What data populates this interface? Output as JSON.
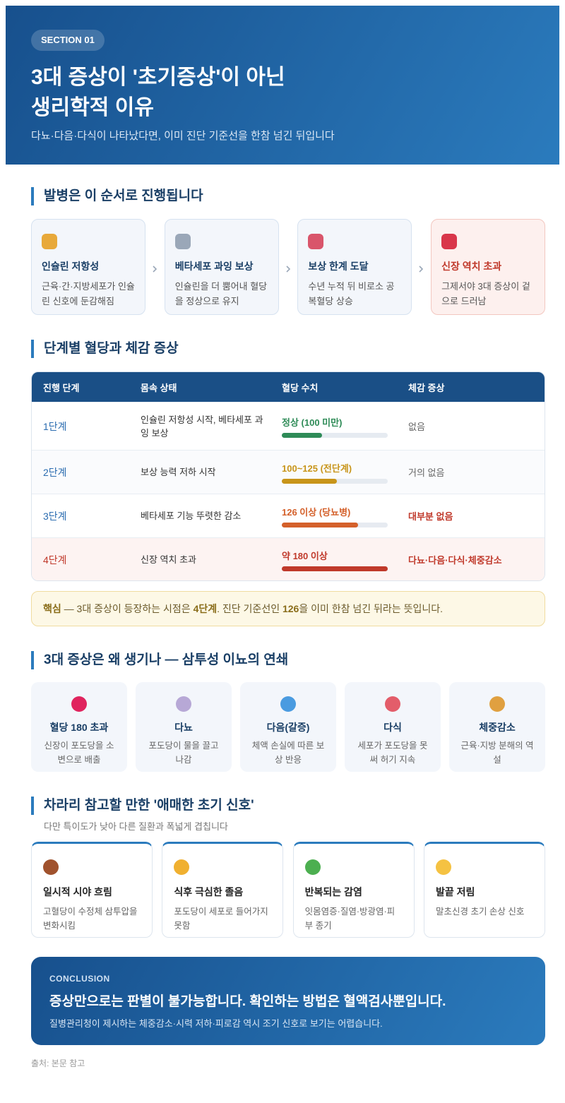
{
  "header": {
    "badge": "SECTION 01",
    "title_lines": [
      "3대 증상이 '초기증상'이 아닌",
      "생리학적 이유"
    ],
    "subtitle": "다뇨·다음·다식이 나타났다면, 이미 진단 기준선을 한참 넘긴 뒤입니다"
  },
  "process": {
    "heading": "발병은 이 순서로 진행됩니다",
    "steps": [
      {
        "title": "인슐린 저항성",
        "desc": "근육·간·지방세포가 인슐린 신호에 둔감해짐"
      },
      {
        "title": "베타세포 과잉 보상",
        "desc": "인슐린을 더 뿜어내 혈당을 정상으로 유지"
      },
      {
        "title": "보상 한계 도달",
        "desc": "수년 누적 뒤 비로소 공복혈당 상승"
      },
      {
        "title": "신장 역치 초과",
        "desc": "그제서야 3대 증상이 겉으로 드러남"
      }
    ]
  },
  "stages": {
    "heading": "단계별 혈당과 체감 증상",
    "columns": [
      "진행 단계",
      "몸속 상태",
      "혈당 수치",
      "체감 증상"
    ],
    "rows": [
      {
        "stage": "1단계",
        "state": "인슐린 저항성 시작, 베타세포 과잉 보상",
        "glucose": {
          "label": "정상 (100 미만)",
          "level": 38,
          "color": "#2e8b57"
        },
        "symptom": "없음"
      },
      {
        "stage": "2단계",
        "state": "보상 능력 저하 시작",
        "glucose": {
          "label": "100~125 (전단계)",
          "level": 52,
          "color": "#c8951a"
        },
        "symptom": "거의 없음"
      },
      {
        "stage": "3단계",
        "state": "베타세포 기능 뚜렷한 감소",
        "glucose": {
          "label": "126 이상 (당뇨병)",
          "level": 72,
          "color": "#d4602a"
        },
        "symptom": "대부분 없음"
      },
      {
        "stage": "4단계",
        "state": "신장 역치 초과",
        "glucose": {
          "label": "약 180 이상",
          "level": 100,
          "color": "#c0392b"
        },
        "symptom": "다뇨·다음·다식·체중감소"
      }
    ]
  },
  "note": {
    "label": "핵심",
    "text1": " — 3대 증상이 등장하는 시점은 ",
    "strong1": "4단계",
    "text2": ". 진단 기준선인 ",
    "strong2": "126",
    "text3": "을 이미 한참 넘긴 뒤라는 뜻입니다."
  },
  "mechanism": {
    "heading": "3대 증상은 왜 생기나 — 삼투성 이뇨의 연쇄",
    "cards": [
      {
        "title": "혈당 180 초과",
        "desc": "신장이 포도당을 소변으로 배출"
      },
      {
        "title": "다뇨",
        "desc": "포도당이 물을 끌고 나감"
      },
      {
        "title": "다음(갈증)",
        "desc": "체액 손실에 따른 보상 반응"
      },
      {
        "title": "다식",
        "desc": "세포가 포도당을 못 써 허기 지속"
      },
      {
        "title": "체중감소",
        "desc": "근육·지방 분해의 역설"
      }
    ]
  },
  "signals": {
    "heading": "차라리 참고할 만한 '애매한 초기 신호'",
    "subheading": "다만 특이도가 낮아 다른 질환과 폭넓게 겹칩니다",
    "cards": [
      {
        "title": "일시적 시야 흐림",
        "desc": "고혈당이 수정체 삼투압을 변화시킴"
      },
      {
        "title": "식후 극심한 졸음",
        "desc": "포도당이 세포로 들어가지 못함"
      },
      {
        "title": "반복되는 감염",
        "desc": "잇몸염증·질염·방광염·피부 종기"
      },
      {
        "title": "발끝 저림",
        "desc": "말초신경 초기 손상 신호"
      }
    ]
  },
  "conclusion": {
    "label": "CONCLUSION",
    "title": "증상만으로는 판별이 불가능합니다. 확인하는 방법은 혈액검사뿐입니다.",
    "text": "질병관리청이 제시하는 체중감소·시력 저하·피로감 역시 조기 신호로 보기는 어렵습니다."
  },
  "source": "출처: 본문 참고"
}
